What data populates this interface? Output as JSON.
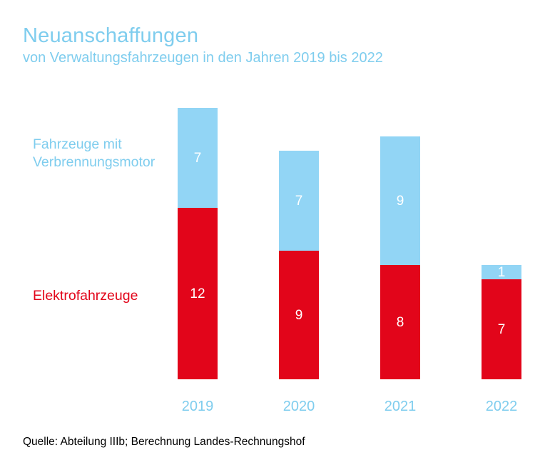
{
  "title": "Neuanschaffungen",
  "subtitle": "von Verwaltungsfahrzeugen in den Jahren 2019 bis 2022",
  "legend": {
    "combustion_line1": "Fahrzeuge mit",
    "combustion_line2": "Verbrennungsmotor",
    "electric": "Elektrofahrzeuge"
  },
  "source": "Quelle: Abteilung IIIb; Berechnung Landes-Rechnungshof",
  "colors": {
    "combustion": "#92d5f5",
    "electric": "#e2051a",
    "label": "#ffffff",
    "axis_text": "#7fcdee"
  },
  "chart_data": {
    "type": "bar",
    "stacked": true,
    "title": "Neuanschaffungen",
    "subtitle": "von Verwaltungsfahrzeugen in den Jahren 2019 bis 2022",
    "categories": [
      "2019",
      "2020",
      "2021",
      "2022"
    ],
    "series": [
      {
        "name": "Elektrofahrzeuge",
        "values": [
          12,
          9,
          8,
          7
        ]
      },
      {
        "name": "Fahrzeuge mit Verbrennungsmotor",
        "values": [
          7,
          7,
          9,
          1
        ]
      }
    ],
    "xlabel": "",
    "ylabel": "",
    "ylim": [
      0,
      19
    ],
    "grid": false,
    "legend_position": "left"
  }
}
